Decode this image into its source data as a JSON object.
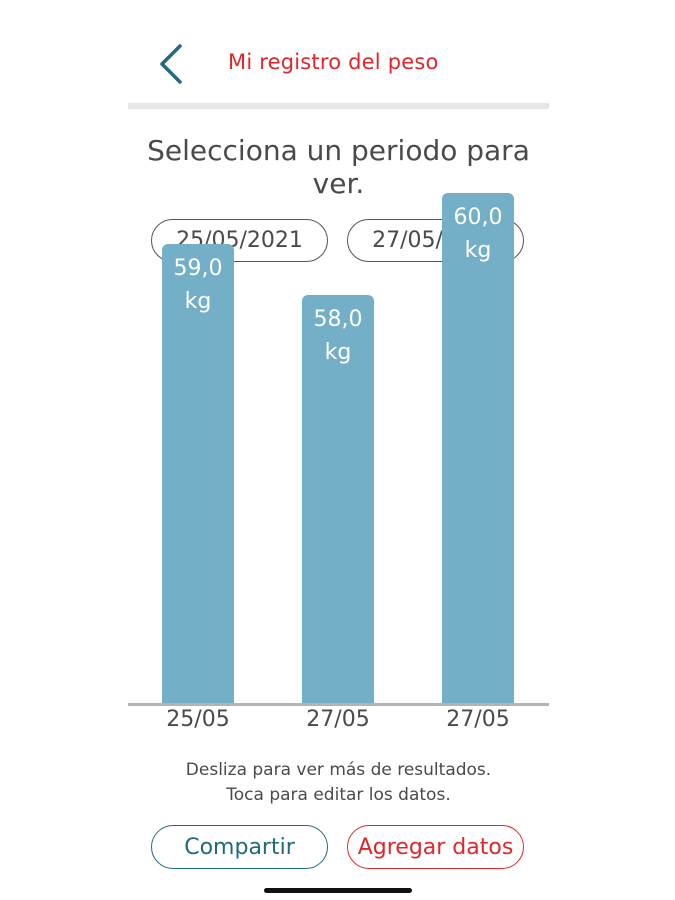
{
  "header": {
    "back_icon": "chevron-left-icon",
    "title": "Mi registro del peso"
  },
  "period": {
    "title": "Selecciona un periodo para ver.",
    "start_date": "25/05/2021",
    "end_date": "27/05/2021"
  },
  "chart_data": {
    "type": "bar",
    "categories": [
      "25/05",
      "27/05",
      "27/05"
    ],
    "values": [
      59.0,
      58.0,
      60.0
    ],
    "value_labels": [
      "59,0 kg",
      "58,0 kg",
      "60,0 kg"
    ],
    "unit": "kg",
    "grid": false,
    "color": "#73afc6"
  },
  "hints": {
    "swipe": "Desliza para ver más de resultados.",
    "tap": "Toca para editar los datos."
  },
  "actions": {
    "share_label": "Compartir",
    "add_label": "Agregar datos"
  },
  "colors": {
    "title_red": "#e0262b",
    "teal": "#1f6a7c",
    "bar": "#73afc6"
  }
}
